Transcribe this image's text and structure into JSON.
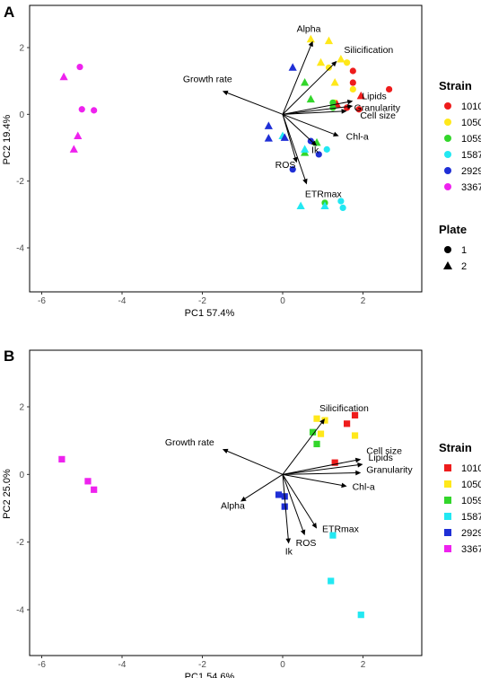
{
  "colors": {
    "1010": "#ee1c1c",
    "1050": "#ffe81a",
    "1059": "#33d62b",
    "1587": "#22e8f2",
    "2929": "#1f2fd6",
    "3367": "#ee22ee"
  },
  "chart_data": [
    {
      "panel": "A",
      "type": "scatter",
      "xlabel": "PC1 57.4%",
      "ylabel": "PC2 19.4%",
      "xlim": [
        -6.6,
        3.4
      ],
      "ylim": [
        -5.3,
        3.3
      ],
      "xticks": [
        -6,
        -4,
        -2,
        0,
        2
      ],
      "yticks": [
        -4,
        -2,
        0,
        2
      ],
      "grid": false,
      "legend": {
        "position": "right",
        "groups": [
          {
            "title": "Strain",
            "entries": [
              "1010",
              "1050",
              "1059",
              "1587",
              "2929",
              "3367"
            ],
            "marker": "circle"
          },
          {
            "title": "Plate",
            "entries": [
              "1",
              "2"
            ],
            "markers": [
              "circle",
              "triangle"
            ]
          }
        ]
      },
      "points": [
        {
          "strain": "3367",
          "plate": "1",
          "x": -5.05,
          "y": 1.42
        },
        {
          "strain": "3367",
          "plate": "1",
          "x": -5.0,
          "y": 0.15
        },
        {
          "strain": "3367",
          "plate": "1",
          "x": -4.7,
          "y": 0.12
        },
        {
          "strain": "3367",
          "plate": "2",
          "x": -5.45,
          "y": 1.12
        },
        {
          "strain": "3367",
          "plate": "2",
          "x": -5.1,
          "y": -0.65
        },
        {
          "strain": "3367",
          "plate": "2",
          "x": -5.2,
          "y": -1.05
        },
        {
          "strain": "1050",
          "plate": "2",
          "x": 0.7,
          "y": 2.25
        },
        {
          "strain": "1050",
          "plate": "2",
          "x": 1.15,
          "y": 2.2
        },
        {
          "strain": "1050",
          "plate": "2",
          "x": 1.45,
          "y": 1.65
        },
        {
          "strain": "1050",
          "plate": "2",
          "x": 0.95,
          "y": 1.55
        },
        {
          "strain": "1050",
          "plate": "1",
          "x": 1.6,
          "y": 1.55
        },
        {
          "strain": "1050",
          "plate": "1",
          "x": 1.15,
          "y": 1.4
        },
        {
          "strain": "1050",
          "plate": "2",
          "x": 1.3,
          "y": 0.95
        },
        {
          "strain": "1050",
          "plate": "1",
          "x": 1.75,
          "y": 0.75
        },
        {
          "strain": "1050",
          "plate": "1",
          "x": 1.3,
          "y": 0.35
        },
        {
          "strain": "1010",
          "plate": "1",
          "x": 1.75,
          "y": 1.3
        },
        {
          "strain": "1010",
          "plate": "1",
          "x": 1.75,
          "y": 0.95
        },
        {
          "strain": "1010",
          "plate": "1",
          "x": 2.65,
          "y": 0.75
        },
        {
          "strain": "1010",
          "plate": "2",
          "x": 1.95,
          "y": 0.55
        },
        {
          "strain": "1010",
          "plate": "2",
          "x": 1.35,
          "y": 0.3
        },
        {
          "strain": "1010",
          "plate": "1",
          "x": 1.6,
          "y": 0.2
        },
        {
          "strain": "1010",
          "plate": "1",
          "x": 1.9,
          "y": 0.15
        },
        {
          "strain": "1059",
          "plate": "2",
          "x": 0.55,
          "y": 0.95
        },
        {
          "strain": "1059",
          "plate": "2",
          "x": 0.7,
          "y": 0.45
        },
        {
          "strain": "1059",
          "plate": "1",
          "x": 1.25,
          "y": 0.35
        },
        {
          "strain": "1059",
          "plate": "1",
          "x": 1.25,
          "y": 0.2
        },
        {
          "strain": "1059",
          "plate": "2",
          "x": 0.85,
          "y": -0.85
        },
        {
          "strain": "1059",
          "plate": "2",
          "x": 0.55,
          "y": -1.15
        },
        {
          "strain": "1059",
          "plate": "1",
          "x": 1.05,
          "y": -2.65
        },
        {
          "strain": "1587",
          "plate": "2",
          "x": 0.0,
          "y": -0.65
        },
        {
          "strain": "1587",
          "plate": "2",
          "x": 0.55,
          "y": -1.05
        },
        {
          "strain": "1587",
          "plate": "1",
          "x": 1.1,
          "y": -1.05
        },
        {
          "strain": "1587",
          "plate": "2",
          "x": 0.45,
          "y": -2.75
        },
        {
          "strain": "1587",
          "plate": "1",
          "x": 1.45,
          "y": -2.6
        },
        {
          "strain": "1587",
          "plate": "1",
          "x": 1.5,
          "y": -2.8
        },
        {
          "strain": "1587",
          "plate": "2",
          "x": 1.05,
          "y": -2.75
        },
        {
          "strain": "2929",
          "plate": "2",
          "x": 0.25,
          "y": 1.4
        },
        {
          "strain": "2929",
          "plate": "2",
          "x": -0.35,
          "y": -0.35
        },
        {
          "strain": "2929",
          "plate": "2",
          "x": -0.35,
          "y": -0.72
        },
        {
          "strain": "2929",
          "plate": "2",
          "x": 0.05,
          "y": -0.7
        },
        {
          "strain": "2929",
          "plate": "1",
          "x": 0.7,
          "y": -0.8
        },
        {
          "strain": "2929",
          "plate": "1",
          "x": 0.9,
          "y": -1.2
        },
        {
          "strain": "2929",
          "plate": "1",
          "x": 0.25,
          "y": -1.65
        }
      ],
      "loadings": [
        {
          "label": "Alpha",
          "x": 0.75,
          "y": 2.2
        },
        {
          "label": "Silicification",
          "x": 1.35,
          "y": 1.6
        },
        {
          "label": "Growth rate",
          "x": -1.5,
          "y": 0.7
        },
        {
          "label": "Lipids",
          "x": 1.75,
          "y": 0.4
        },
        {
          "label": "Granularity",
          "x": 1.6,
          "y": 0.1
        },
        {
          "label": "Cell size",
          "x": 1.75,
          "y": 0.25
        },
        {
          "label": "Chl-a",
          "x": 1.4,
          "y": -0.65
        },
        {
          "label": "Ik",
          "x": 0.85,
          "y": -0.95
        },
        {
          "label": "ROS",
          "x": 0.35,
          "y": -1.45
        },
        {
          "label": "ETRmax",
          "x": 0.6,
          "y": -2.1
        }
      ]
    },
    {
      "panel": "B",
      "type": "scatter",
      "xlabel": "PC1 54.6%",
      "ylabel": "PC2 25.0%",
      "xlim": [
        -6.6,
        3.4
      ],
      "ylim": [
        -5.3,
        3.3
      ],
      "xticks": [
        -6,
        -4,
        -2,
        0,
        2
      ],
      "yticks": [
        -4,
        -2,
        0,
        2
      ],
      "grid": false,
      "legend": {
        "position": "right",
        "groups": [
          {
            "title": "Strain",
            "entries": [
              "1010",
              "1050",
              "1059",
              "1587",
              "2929",
              "3367"
            ],
            "marker": "square"
          }
        ]
      },
      "points": [
        {
          "strain": "3367",
          "x": -5.5,
          "y": 0.45
        },
        {
          "strain": "3367",
          "x": -4.85,
          "y": -0.2
        },
        {
          "strain": "3367",
          "x": -4.7,
          "y": -0.45
        },
        {
          "strain": "1050",
          "x": 0.85,
          "y": 1.65
        },
        {
          "strain": "1050",
          "x": 1.05,
          "y": 1.6
        },
        {
          "strain": "1050",
          "x": 0.95,
          "y": 1.2
        },
        {
          "strain": "1050",
          "x": 1.8,
          "y": 1.15
        },
        {
          "strain": "1010",
          "x": 1.8,
          "y": 1.75
        },
        {
          "strain": "1010",
          "x": 1.6,
          "y": 1.5
        },
        {
          "strain": "1010",
          "x": 1.3,
          "y": 0.35
        },
        {
          "strain": "1059",
          "x": 0.75,
          "y": 1.25
        },
        {
          "strain": "1059",
          "x": 0.85,
          "y": 0.9
        },
        {
          "strain": "1587",
          "x": 1.25,
          "y": -1.8
        },
        {
          "strain": "1587",
          "x": 1.2,
          "y": -3.15
        },
        {
          "strain": "1587",
          "x": 1.95,
          "y": -4.15
        },
        {
          "strain": "2929",
          "x": -0.1,
          "y": -0.6
        },
        {
          "strain": "2929",
          "x": 0.05,
          "y": -0.65
        },
        {
          "strain": "2929",
          "x": 0.05,
          "y": -0.95
        }
      ],
      "loadings": [
        {
          "label": "Silicification",
          "x": 1.05,
          "y": 1.65
        },
        {
          "label": "Growth rate",
          "x": -1.5,
          "y": 0.75
        },
        {
          "label": "Cell size",
          "x": 1.95,
          "y": 0.45
        },
        {
          "label": "Lipids",
          "x": 2.0,
          "y": 0.3
        },
        {
          "label": "Granularity",
          "x": 1.95,
          "y": 0.05
        },
        {
          "label": "Chl-a",
          "x": 1.6,
          "y": -0.35
        },
        {
          "label": "Alpha",
          "x": -1.05,
          "y": -0.8
        },
        {
          "label": "ETRmax",
          "x": 0.85,
          "y": -1.6
        },
        {
          "label": "ROS",
          "x": 0.55,
          "y": -1.8
        },
        {
          "label": "Ik",
          "x": 0.15,
          "y": -2.05
        }
      ]
    }
  ]
}
